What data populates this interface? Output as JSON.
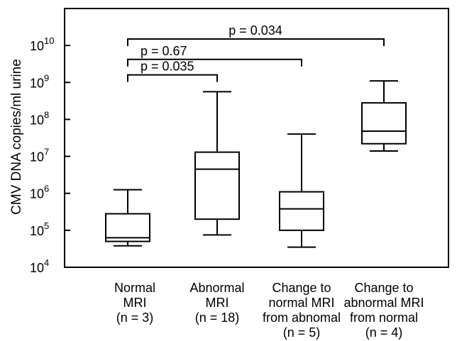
{
  "chart_data": {
    "type": "box",
    "ylabel": "CMV DNA copies/ml urine",
    "yscale": "log",
    "ylim": [
      10000,
      100000000000
    ],
    "y_ticks": [
      {
        "value": 10000,
        "base": "10",
        "exp": "4"
      },
      {
        "value": 100000,
        "base": "10",
        "exp": "5"
      },
      {
        "value": 1000000,
        "base": "10",
        "exp": "6"
      },
      {
        "value": 10000000,
        "base": "10",
        "exp": "7"
      },
      {
        "value": 100000000,
        "base": "10",
        "exp": "8"
      },
      {
        "value": 1000000000,
        "base": "10",
        "exp": "9"
      },
      {
        "value": 10000000000,
        "base": "10",
        "exp": "10"
      }
    ],
    "groups": [
      {
        "label_lines": [
          "Normal",
          "MRI",
          "(n = 3)"
        ],
        "whisker_low": 38000,
        "q1": 50000,
        "median": 63000,
        "q3": 280000,
        "whisker_high": 1250000
      },
      {
        "label_lines": [
          "Abnormal",
          "MRI",
          "(n = 18)"
        ],
        "whisker_low": 75000,
        "q1": 200000,
        "median": 4500000,
        "q3": 13000000,
        "whisker_high": 560000000
      },
      {
        "label_lines": [
          "Change to",
          "normal MRI",
          "from abnomal",
          "(n = 5)"
        ],
        "whisker_low": 35000,
        "q1": 100000,
        "median": 380000,
        "q3": 1100000,
        "whisker_high": 40000000
      },
      {
        "label_lines": [
          "Change to",
          "abnormal MRI",
          "from normal",
          "(n = 4)"
        ],
        "whisker_low": 14000000,
        "q1": 22000000,
        "median": 48000000,
        "q3": 280000000,
        "whisker_high": 1100000000
      }
    ],
    "comparisons": [
      {
        "from": 0,
        "to": 1,
        "label": "p = 0.035",
        "y": 1600000000
      },
      {
        "from": 0,
        "to": 2,
        "label": "p = 0.67",
        "y": 4200000000
      },
      {
        "from": 0,
        "to": 3,
        "label": "p = 0.034",
        "y": 15000000000
      }
    ],
    "grid": false,
    "legend": "none"
  }
}
